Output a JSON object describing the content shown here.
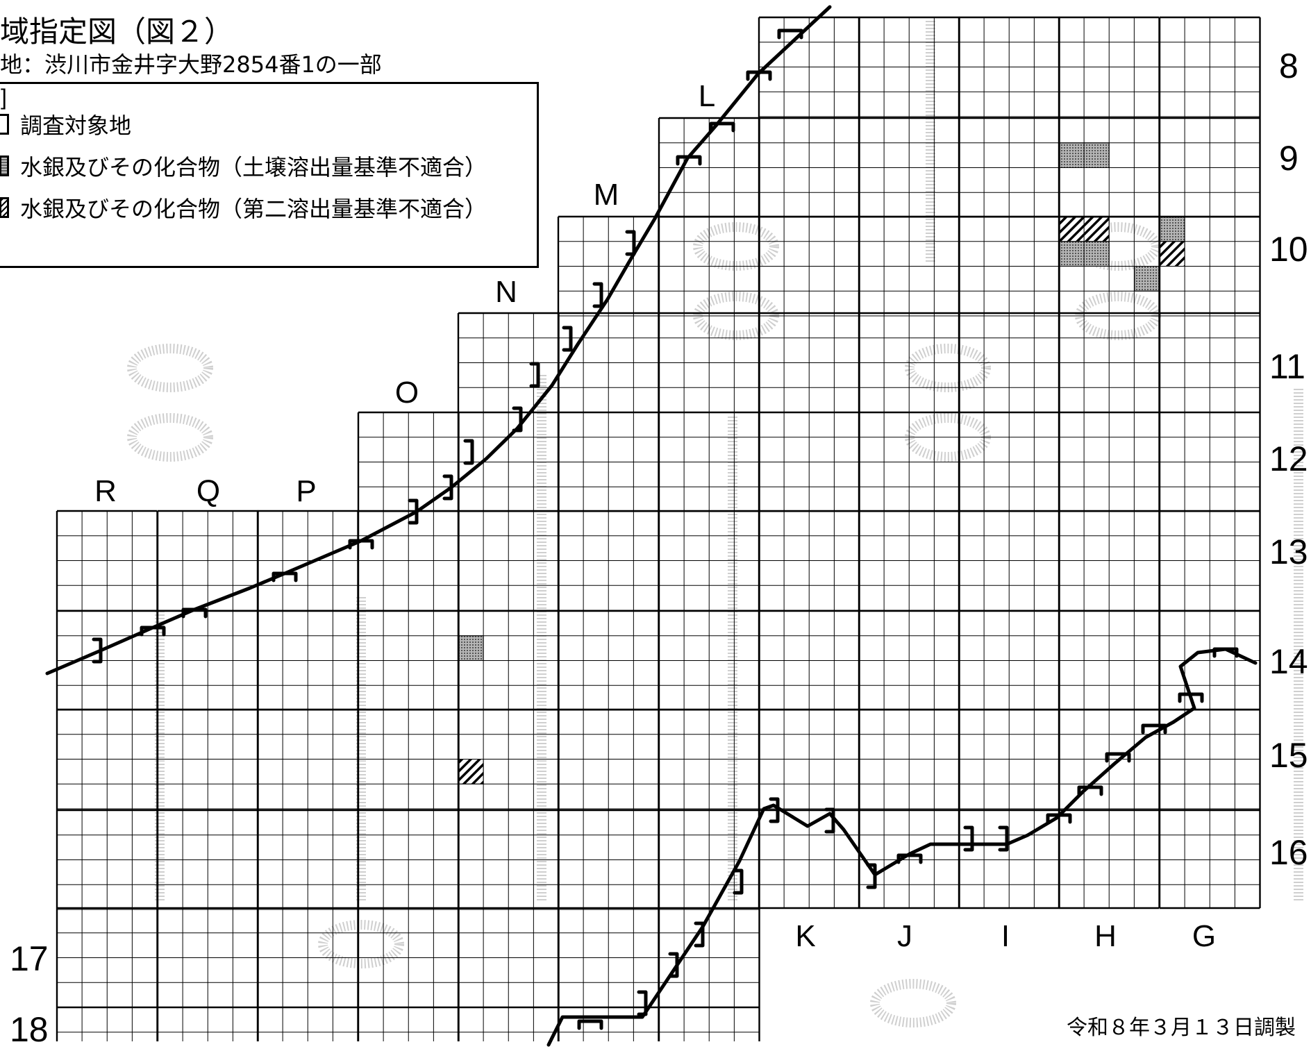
{
  "header": {
    "title": "域指定図（図２）",
    "location": "地：渋川市金井字大野2854番1の一部"
  },
  "legend": {
    "heading": "]",
    "items": [
      {
        "icon": "boundary-bracket-icon",
        "label": "調査対象地"
      },
      {
        "icon": "dotted-fill-icon",
        "label": "水銀及びその化合物（土壌溶出量基準不適合）"
      },
      {
        "icon": "hatched-fill-icon",
        "label": "水銀及びその化合物（第二溶出量基準不適合）"
      }
    ]
  },
  "grid": {
    "column_labels": [
      "R",
      "Q",
      "P",
      "O",
      "N",
      "M",
      "L",
      "K",
      "J",
      "I",
      "H",
      "G"
    ],
    "row_labels": [
      "8",
      "9",
      "10",
      "11",
      "12",
      "13",
      "14",
      "15",
      "16",
      "17",
      "18"
    ]
  },
  "cells": {
    "dotted": [
      {
        "col": "H",
        "row": "9",
        "sub": 1
      },
      {
        "col": "H",
        "row": "10",
        "sub": 1
      },
      {
        "col": "G",
        "row": "10",
        "sub": 0
      },
      {
        "col": "G",
        "row": "10",
        "sub": 2
      },
      {
        "col": "N",
        "row": "14",
        "sub": 1
      }
    ],
    "hatched": [
      {
        "col": "H",
        "row": "10",
        "sub": 0
      },
      {
        "col": "G",
        "row": "10",
        "sub": 1
      },
      {
        "col": "N",
        "row": "15",
        "sub": 2
      }
    ]
  },
  "colors": {
    "grid": "#000000",
    "fill_dotted": "#8c8c8c",
    "fill_hatched": "#000000",
    "watermark": "#c8c8c8"
  },
  "footer": {
    "date": "令和８年３月１３日調製"
  }
}
